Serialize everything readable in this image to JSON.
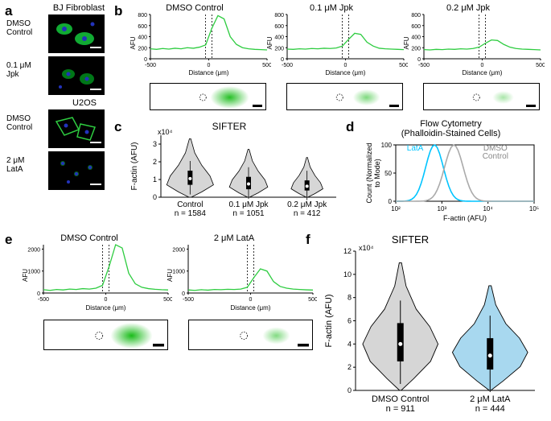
{
  "colors": {
    "green": "#2ecc40",
    "cyan": "#00c4ff",
    "gray": "#aaaaaa",
    "lightgray": "#d9d9d9",
    "blue_nuclei": "#2030b0",
    "black": "#000000",
    "violin_fill": "#d6d6d6",
    "violin_blue": "#a8d8ef"
  },
  "panel_a": {
    "label": "a",
    "col_title": "BJ Fibroblast",
    "rows_bj": [
      "DMSO\nControl",
      "0.1 μM\nJpk"
    ],
    "col_title2": "U2OS",
    "rows_u2os": [
      "DMSO\nControl",
      "2 μM\nLatA"
    ]
  },
  "panel_b": {
    "label": "b",
    "titles": [
      "DMSO Control",
      "0.1 μM Jpk",
      "0.2 μM Jpk"
    ],
    "ylim": [
      0,
      800
    ],
    "yticks": [
      0,
      200,
      400,
      600,
      800
    ],
    "xlim": [
      -500,
      500
    ],
    "xticks": [
      -500,
      0,
      500
    ],
    "ylabel": "AFU",
    "xlabel": "Distance (μm)",
    "traces": [
      [
        180,
        170,
        185,
        175,
        190,
        180,
        200,
        190,
        210,
        250,
        550,
        780,
        720,
        400,
        260,
        200,
        180,
        170,
        165,
        160
      ],
      [
        175,
        170,
        180,
        175,
        185,
        180,
        190,
        185,
        195,
        230,
        350,
        460,
        440,
        300,
        230,
        190,
        180,
        175,
        170,
        165
      ],
      [
        165,
        160,
        170,
        165,
        175,
        170,
        180,
        175,
        185,
        210,
        280,
        340,
        330,
        260,
        210,
        185,
        175,
        170,
        165,
        160
      ]
    ]
  },
  "panel_c": {
    "label": "c",
    "title": "SIFTER",
    "ylabel": "F-actin (AFU)",
    "ymax_label": "x10⁴",
    "yticks": [
      0,
      1,
      2,
      3
    ],
    "categories": [
      "Control\nn = 1584",
      "0.1 μM Jpk\nn = 1051",
      "0.2 μM Jpk\nn = 412"
    ],
    "medians": [
      1.05,
      0.75,
      0.62
    ],
    "q1": [
      0.7,
      0.45,
      0.38
    ],
    "q3": [
      1.5,
      1.15,
      0.95
    ]
  },
  "panel_d": {
    "label": "d",
    "title": "Flow Cytometry\n(Phalloidin-Stained Cells)",
    "ylabel": "Count (Normalized\nto Mode)",
    "xlabel": "F-actin (AFU)",
    "yticks": [
      0,
      50,
      100
    ],
    "xticks": [
      "10²",
      "10³",
      "10⁴",
      "10⁵"
    ],
    "legend": {
      "lata": "LatA",
      "dmso": "DMSO\nControl"
    }
  },
  "panel_e": {
    "label": "e",
    "titles": [
      "DMSO Control",
      "2 μM LatA"
    ],
    "ylim": [
      0,
      2000
    ],
    "yticks": [
      0,
      1000,
      2000
    ],
    "xlim": [
      -500,
      500
    ],
    "xticks": [
      -500,
      0,
      500
    ],
    "ylabel": "AFU",
    "xlabel": "Distance (μm)",
    "traces": [
      [
        150,
        120,
        160,
        140,
        180,
        160,
        200,
        180,
        220,
        350,
        1200,
        2200,
        2050,
        900,
        420,
        260,
        200,
        170,
        150,
        140
      ],
      [
        140,
        120,
        150,
        130,
        160,
        150,
        170,
        160,
        180,
        260,
        700,
        1100,
        1000,
        520,
        300,
        220,
        180,
        160,
        145,
        135
      ]
    ]
  },
  "panel_f": {
    "label": "f",
    "title": "SIFTER",
    "ylabel": "F-actin (AFU)",
    "ymax_label": "x10⁴",
    "yticks": [
      0,
      2,
      4,
      6,
      8,
      10,
      12
    ],
    "categories": [
      "DMSO Control\nn = 911",
      "2 μM LatA\nn = 444"
    ],
    "medians": [
      4.0,
      3.0
    ],
    "q1": [
      2.5,
      1.8
    ],
    "q3": [
      5.8,
      4.5
    ]
  }
}
